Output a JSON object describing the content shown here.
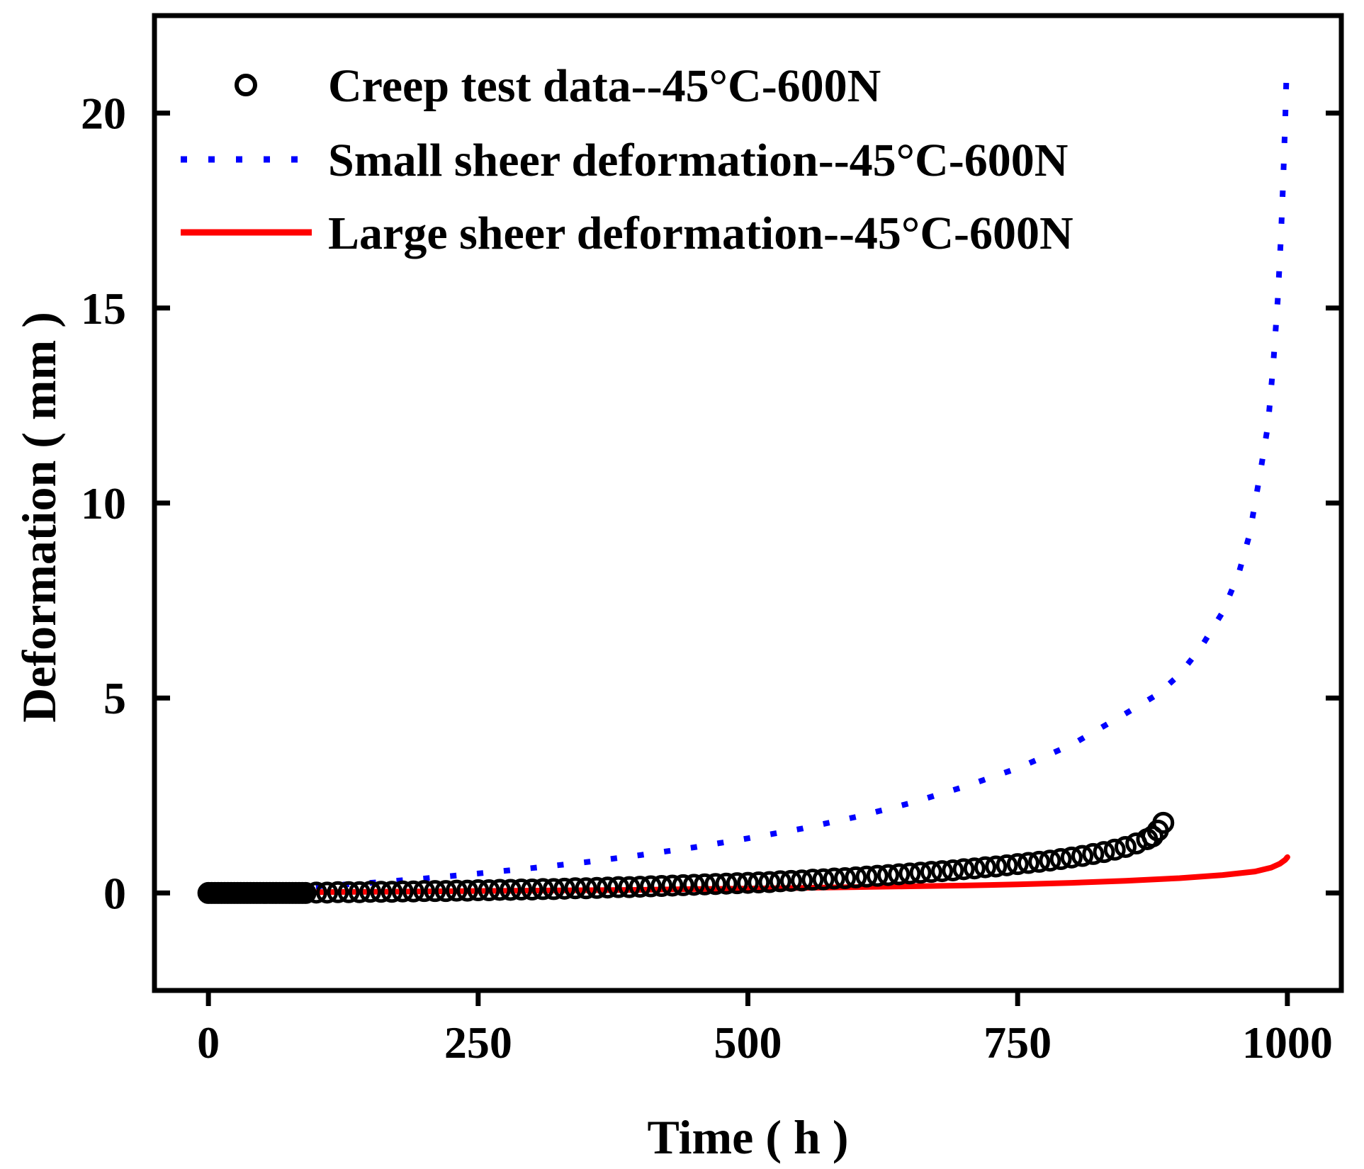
{
  "chart_data": {
    "type": "line",
    "xlabel": "Time ( h )",
    "ylabel": "Deformation ( mm )",
    "xlim": [
      -50,
      1050
    ],
    "ylim": [
      -2.5,
      22.5
    ],
    "xticks": [
      0,
      250,
      500,
      750,
      1000
    ],
    "yticks": [
      0,
      5,
      10,
      15,
      20
    ],
    "xtick_labels": [
      "0",
      "250",
      "500",
      "750",
      "1000"
    ],
    "ytick_labels": [
      "0",
      "5",
      "10",
      "15",
      "20"
    ],
    "legend_position": "top-left",
    "series": [
      {
        "name": "Creep test data--45°C-600N",
        "style": "open-circle-markers",
        "color": "#000000",
        "x": [
          0,
          3,
          6,
          9,
          12,
          15,
          18,
          21,
          24,
          27,
          30,
          33,
          36,
          39,
          42,
          45,
          48,
          51,
          54,
          57,
          60,
          63,
          66,
          69,
          72,
          75,
          78,
          81,
          84,
          87,
          90,
          100,
          110,
          120,
          130,
          140,
          150,
          160,
          170,
          180,
          190,
          200,
          210,
          220,
          230,
          240,
          250,
          260,
          270,
          280,
          290,
          300,
          310,
          320,
          330,
          340,
          350,
          360,
          370,
          380,
          390,
          400,
          410,
          420,
          430,
          440,
          450,
          460,
          470,
          480,
          490,
          500,
          510,
          520,
          530,
          540,
          550,
          560,
          570,
          580,
          590,
          600,
          610,
          620,
          630,
          640,
          650,
          660,
          670,
          680,
          690,
          700,
          710,
          720,
          730,
          740,
          750,
          760,
          770,
          780,
          790,
          800,
          810,
          820,
          830,
          840,
          850,
          860,
          870,
          875,
          880,
          885
        ],
        "y": [
          0,
          0,
          0,
          0,
          0,
          0,
          0,
          0,
          0,
          0,
          0,
          0,
          0,
          0,
          0,
          0,
          0,
          0,
          0,
          0,
          0,
          0,
          0,
          0,
          0,
          0,
          0,
          0,
          0,
          0,
          0,
          0.01,
          0.01,
          0.02,
          0.02,
          0.02,
          0.03,
          0.03,
          0.03,
          0.04,
          0.04,
          0.05,
          0.05,
          0.05,
          0.06,
          0.06,
          0.07,
          0.07,
          0.08,
          0.08,
          0.09,
          0.09,
          0.1,
          0.1,
          0.11,
          0.12,
          0.12,
          0.13,
          0.14,
          0.15,
          0.15,
          0.16,
          0.17,
          0.18,
          0.19,
          0.2,
          0.21,
          0.22,
          0.23,
          0.24,
          0.25,
          0.26,
          0.27,
          0.28,
          0.3,
          0.31,
          0.32,
          0.34,
          0.35,
          0.37,
          0.38,
          0.4,
          0.42,
          0.44,
          0.46,
          0.48,
          0.5,
          0.52,
          0.54,
          0.56,
          0.58,
          0.61,
          0.63,
          0.66,
          0.68,
          0.71,
          0.74,
          0.77,
          0.8,
          0.83,
          0.87,
          0.91,
          0.95,
          1.0,
          1.05,
          1.11,
          1.18,
          1.27,
          1.38,
          1.45,
          1.6,
          1.8
        ]
      },
      {
        "name": "Small sheer deformation--45°C-600N",
        "style": "dotted-line",
        "color": "#0000ff",
        "x": [
          0,
          50,
          100,
          150,
          200,
          250,
          300,
          350,
          400,
          450,
          500,
          550,
          600,
          650,
          700,
          750,
          800,
          850,
          880,
          900,
          920,
          940,
          955,
          965,
          975,
          982,
          987,
          991,
          994,
          996,
          998,
          999
        ],
        "y": [
          0,
          0.09,
          0.17,
          0.26,
          0.37,
          0.5,
          0.64,
          0.79,
          0.97,
          1.17,
          1.4,
          1.65,
          1.95,
          2.3,
          2.72,
          3.2,
          3.8,
          4.6,
          5.1,
          5.6,
          6.3,
          7.2,
          8.2,
          9.2,
          10.8,
          12.0,
          13.6,
          15.2,
          16.8,
          18.2,
          19.8,
          20.8
        ]
      },
      {
        "name": "Large sheer deformation--45°C-600N",
        "style": "solid-line",
        "color": "#ff0000",
        "x": [
          0,
          50,
          100,
          150,
          200,
          250,
          300,
          350,
          400,
          450,
          500,
          550,
          600,
          650,
          700,
          750,
          800,
          850,
          900,
          940,
          970,
          985,
          993,
          998,
          1000
        ],
        "y": [
          0,
          0.01,
          0.02,
          0.03,
          0.04,
          0.05,
          0.06,
          0.07,
          0.08,
          0.1,
          0.11,
          0.13,
          0.15,
          0.17,
          0.19,
          0.22,
          0.26,
          0.31,
          0.38,
          0.46,
          0.55,
          0.65,
          0.75,
          0.85,
          0.92
        ]
      }
    ]
  }
}
